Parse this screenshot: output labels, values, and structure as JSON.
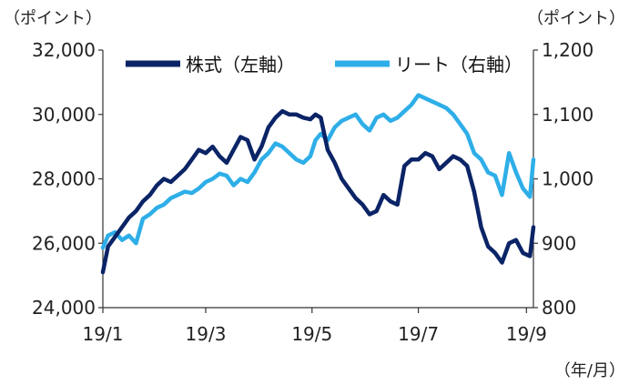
{
  "chart_data": {
    "type": "line",
    "title": "",
    "units": {
      "left": "（ポイント）",
      "right": "（ポイント）",
      "x": "（年/月）"
    },
    "left_axis": {
      "ylim": [
        24000,
        32000
      ],
      "ticks": [
        24000,
        26000,
        28000,
        30000,
        32000
      ],
      "tick_labels": [
        "24,000",
        "26,000",
        "28,000",
        "30,000",
        "32,000"
      ]
    },
    "right_axis": {
      "ylim": [
        800,
        1200
      ],
      "ticks": [
        800,
        900,
        1000,
        1100,
        1200
      ],
      "tick_labels": [
        "800",
        "900",
        "1,000",
        "1,100",
        "1,200"
      ]
    },
    "x_axis": {
      "range": [
        "2019-01-01",
        "2019-09-05"
      ],
      "ticks": [
        "2019-01-01",
        "2019-03-01",
        "2019-05-01",
        "2019-07-01",
        "2019-09-01"
      ],
      "tick_labels": [
        "19/1",
        "19/3",
        "19/5",
        "19/7",
        "19/9"
      ]
    },
    "grid": false,
    "legend": {
      "placement": "top"
    },
    "series": [
      {
        "name": "株式（左軸）",
        "axis": "left",
        "color": "#0b2466",
        "points": [
          [
            "2019-01-01",
            25100
          ],
          [
            "2019-01-04",
            25900
          ],
          [
            "2019-01-08",
            26200
          ],
          [
            "2019-01-12",
            26500
          ],
          [
            "2019-01-16",
            26800
          ],
          [
            "2019-01-20",
            27000
          ],
          [
            "2019-01-24",
            27300
          ],
          [
            "2019-01-28",
            27500
          ],
          [
            "2019-02-01",
            27800
          ],
          [
            "2019-02-05",
            28000
          ],
          [
            "2019-02-09",
            27900
          ],
          [
            "2019-02-13",
            28100
          ],
          [
            "2019-02-17",
            28300
          ],
          [
            "2019-02-21",
            28600
          ],
          [
            "2019-02-25",
            28900
          ],
          [
            "2019-03-01",
            28800
          ],
          [
            "2019-03-05",
            29000
          ],
          [
            "2019-03-09",
            28700
          ],
          [
            "2019-03-13",
            28500
          ],
          [
            "2019-03-17",
            28900
          ],
          [
            "2019-03-21",
            29300
          ],
          [
            "2019-03-25",
            29200
          ],
          [
            "2019-03-29",
            28600
          ],
          [
            "2019-04-02",
            29000
          ],
          [
            "2019-04-06",
            29600
          ],
          [
            "2019-04-10",
            29900
          ],
          [
            "2019-04-14",
            30100
          ],
          [
            "2019-04-18",
            30000
          ],
          [
            "2019-04-22",
            30000
          ],
          [
            "2019-04-26",
            29900
          ],
          [
            "2019-04-30",
            29850
          ],
          [
            "2019-05-03",
            30000
          ],
          [
            "2019-05-06",
            29900
          ],
          [
            "2019-05-10",
            28900
          ],
          [
            "2019-05-14",
            28500
          ],
          [
            "2019-05-18",
            28000
          ],
          [
            "2019-05-22",
            27700
          ],
          [
            "2019-05-26",
            27400
          ],
          [
            "2019-05-30",
            27200
          ],
          [
            "2019-06-03",
            26900
          ],
          [
            "2019-06-07",
            27000
          ],
          [
            "2019-06-11",
            27500
          ],
          [
            "2019-06-15",
            27300
          ],
          [
            "2019-06-19",
            27200
          ],
          [
            "2019-06-23",
            28400
          ],
          [
            "2019-06-27",
            28600
          ],
          [
            "2019-07-01",
            28600
          ],
          [
            "2019-07-05",
            28800
          ],
          [
            "2019-07-09",
            28700
          ],
          [
            "2019-07-13",
            28300
          ],
          [
            "2019-07-17",
            28500
          ],
          [
            "2019-07-21",
            28700
          ],
          [
            "2019-07-25",
            28600
          ],
          [
            "2019-07-29",
            28400
          ],
          [
            "2019-08-02",
            27600
          ],
          [
            "2019-08-06",
            26500
          ],
          [
            "2019-08-10",
            25900
          ],
          [
            "2019-08-14",
            25700
          ],
          [
            "2019-08-18",
            25400
          ],
          [
            "2019-08-22",
            26000
          ],
          [
            "2019-08-26",
            26100
          ],
          [
            "2019-08-30",
            25700
          ],
          [
            "2019-09-03",
            25600
          ],
          [
            "2019-09-05",
            26500
          ]
        ]
      },
      {
        "name": "リート（右軸）",
        "axis": "right",
        "color": "#2eaee8",
        "points": [
          [
            "2019-01-01",
            893
          ],
          [
            "2019-01-04",
            912
          ],
          [
            "2019-01-08",
            917
          ],
          [
            "2019-01-12",
            905
          ],
          [
            "2019-01-16",
            912
          ],
          [
            "2019-01-20",
            900
          ],
          [
            "2019-01-24",
            938
          ],
          [
            "2019-01-28",
            945
          ],
          [
            "2019-02-01",
            955
          ],
          [
            "2019-02-05",
            960
          ],
          [
            "2019-02-09",
            970
          ],
          [
            "2019-02-13",
            975
          ],
          [
            "2019-02-17",
            980
          ],
          [
            "2019-02-21",
            978
          ],
          [
            "2019-02-25",
            985
          ],
          [
            "2019-03-01",
            995
          ],
          [
            "2019-03-05",
            1000
          ],
          [
            "2019-03-09",
            1008
          ],
          [
            "2019-03-13",
            1005
          ],
          [
            "2019-03-17",
            990
          ],
          [
            "2019-03-21",
            1000
          ],
          [
            "2019-03-25",
            995
          ],
          [
            "2019-03-29",
            1010
          ],
          [
            "2019-04-02",
            1030
          ],
          [
            "2019-04-06",
            1040
          ],
          [
            "2019-04-10",
            1055
          ],
          [
            "2019-04-14",
            1050
          ],
          [
            "2019-04-18",
            1040
          ],
          [
            "2019-04-22",
            1030
          ],
          [
            "2019-04-26",
            1025
          ],
          [
            "2019-04-30",
            1035
          ],
          [
            "2019-05-03",
            1060
          ],
          [
            "2019-05-06",
            1070
          ],
          [
            "2019-05-10",
            1060
          ],
          [
            "2019-05-14",
            1080
          ],
          [
            "2019-05-18",
            1090
          ],
          [
            "2019-05-22",
            1095
          ],
          [
            "2019-05-26",
            1100
          ],
          [
            "2019-05-30",
            1085
          ],
          [
            "2019-06-03",
            1075
          ],
          [
            "2019-06-07",
            1095
          ],
          [
            "2019-06-11",
            1100
          ],
          [
            "2019-06-15",
            1090
          ],
          [
            "2019-06-19",
            1095
          ],
          [
            "2019-06-23",
            1105
          ],
          [
            "2019-06-27",
            1115
          ],
          [
            "2019-07-01",
            1130
          ],
          [
            "2019-07-05",
            1125
          ],
          [
            "2019-07-09",
            1120
          ],
          [
            "2019-07-13",
            1115
          ],
          [
            "2019-07-17",
            1110
          ],
          [
            "2019-07-21",
            1100
          ],
          [
            "2019-07-25",
            1085
          ],
          [
            "2019-07-29",
            1070
          ],
          [
            "2019-08-02",
            1040
          ],
          [
            "2019-08-06",
            1030
          ],
          [
            "2019-08-10",
            1010
          ],
          [
            "2019-08-14",
            1005
          ],
          [
            "2019-08-18",
            975
          ],
          [
            "2019-08-22",
            1040
          ],
          [
            "2019-08-26",
            1010
          ],
          [
            "2019-08-30",
            985
          ],
          [
            "2019-09-03",
            972
          ],
          [
            "2019-09-05",
            1030
          ]
        ]
      }
    ]
  }
}
